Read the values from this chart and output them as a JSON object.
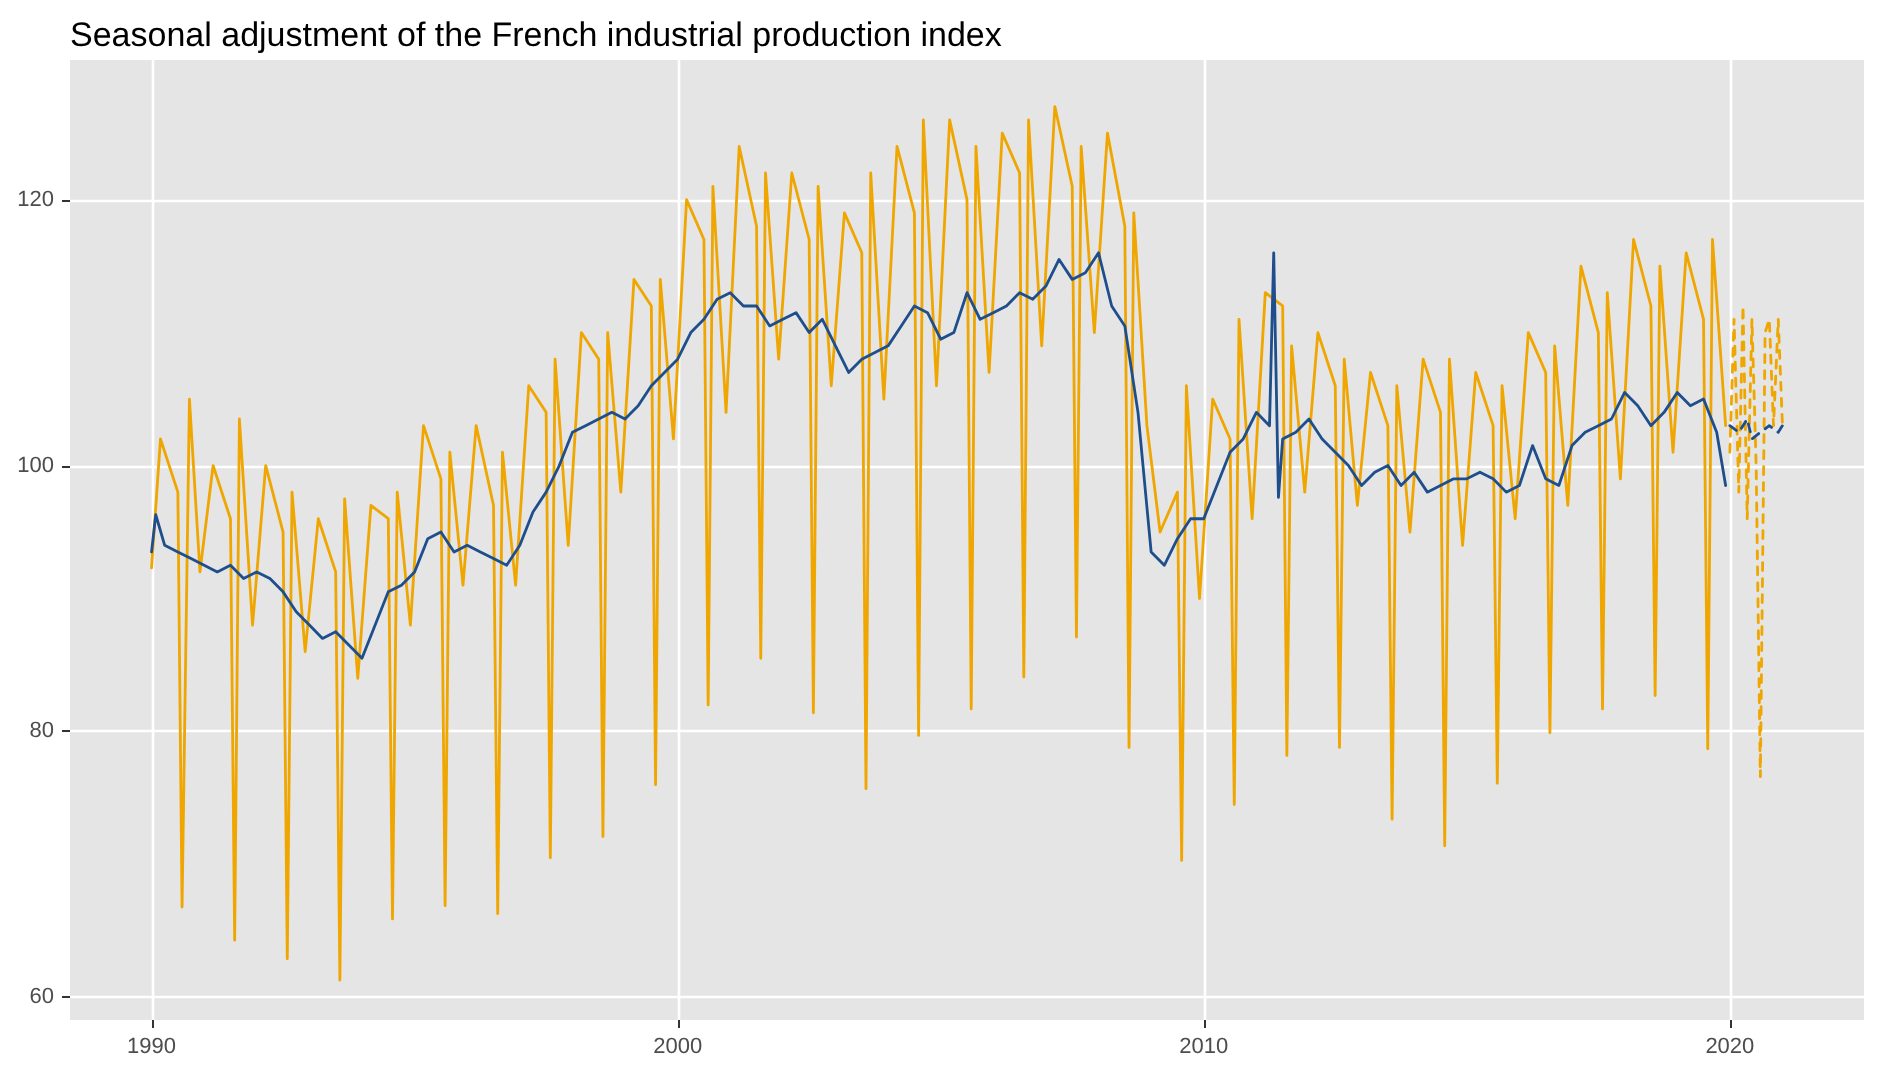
{
  "chart_data": {
    "type": "line",
    "title": "Seasonal adjustment of the French industrial production index",
    "xlim": [
      1988.45,
      2022.55
    ],
    "xticks": [
      1990,
      2000,
      2010,
      2020
    ],
    "ylim": [
      58.3,
      130.5
    ],
    "yticks": [
      60,
      80,
      100,
      120
    ],
    "grid": true,
    "marker": "none",
    "series": [
      {
        "color": "#efa600",
        "line_style": "solid",
        "x": [
          1990,
          1990.17,
          1990.5,
          1990.58,
          1990.72,
          1990.92,
          1991.17,
          1991.5,
          1991.58,
          1991.67,
          1991.92,
          1992.17,
          1992.5,
          1992.58,
          1992.67,
          1992.92,
          1993.17,
          1993.5,
          1993.58,
          1993.67,
          1993.92,
          1994.17,
          1994.5,
          1994.58,
          1994.67,
          1994.92,
          1995.17,
          1995.5,
          1995.58,
          1995.67,
          1995.92,
          1996.17,
          1996.5,
          1996.58,
          1996.67,
          1996.92,
          1997.17,
          1997.5,
          1997.58,
          1997.67,
          1997.92,
          1998.17,
          1998.5,
          1998.58,
          1998.67,
          1998.92,
          1999.17,
          1999.5,
          1999.58,
          1999.67,
          1999.92,
          2000.17,
          2000.5,
          2000.58,
          2000.67,
          2000.92,
          2001.17,
          2001.5,
          2001.58,
          2001.67,
          2001.92,
          2002.17,
          2002.5,
          2002.58,
          2002.67,
          2002.92,
          2003.17,
          2003.5,
          2003.58,
          2003.67,
          2003.92,
          2004.17,
          2004.5,
          2004.58,
          2004.67,
          2004.92,
          2005.17,
          2005.5,
          2005.58,
          2005.67,
          2005.92,
          2006.17,
          2006.5,
          2006.58,
          2006.67,
          2006.92,
          2007.17,
          2007.5,
          2007.58,
          2007.67,
          2007.92,
          2008.17,
          2008.5,
          2008.58,
          2008.67,
          2008.92,
          2009.17,
          2009.5,
          2009.58,
          2009.67,
          2009.92,
          2010.17,
          2010.5,
          2010.58,
          2010.67,
          2010.92,
          2011.17,
          2011.5,
          2011.58,
          2011.67,
          2011.92,
          2012.17,
          2012.5,
          2012.58,
          2012.67,
          2012.92,
          2013.17,
          2013.5,
          2013.58,
          2013.67,
          2013.92,
          2014.17,
          2014.5,
          2014.58,
          2014.67,
          2014.92,
          2015.17,
          2015.5,
          2015.58,
          2015.67,
          2015.92,
          2016.17,
          2016.5,
          2016.58,
          2016.67,
          2016.92,
          2017.17,
          2017.5,
          2017.58,
          2017.67,
          2017.92,
          2018.17,
          2018.5,
          2018.58,
          2018.67,
          2018.92,
          2019.17,
          2019.5,
          2019.58,
          2019.67,
          2019.92
        ],
        "values": [
          92.3,
          102,
          98,
          66.8,
          105,
          92,
          100,
          96,
          64.3,
          103.5,
          88,
          100,
          95,
          62.9,
          98,
          86,
          96,
          92,
          61.3,
          97.5,
          84,
          97,
          96,
          65.9,
          98,
          88,
          103,
          99,
          66.9,
          101,
          91,
          103,
          97,
          66.3,
          101,
          91,
          106,
          104,
          70.5,
          108,
          94,
          110,
          108,
          72.1,
          110,
          98,
          114,
          112,
          76,
          114,
          102,
          120,
          117,
          82,
          121,
          104,
          124,
          118,
          85.5,
          122,
          108,
          122,
          117,
          81.4,
          121,
          106,
          119,
          116,
          75.7,
          122,
          105,
          124,
          119,
          79.7,
          126,
          106,
          126,
          120,
          81.7,
          124,
          107,
          125,
          122,
          84.1,
          126,
          109,
          127,
          121,
          87.1,
          124,
          110,
          125,
          118,
          78.8,
          119,
          103,
          95,
          98,
          70.3,
          106,
          90,
          105,
          102,
          74.5,
          111,
          96,
          113,
          112,
          78.2,
          109,
          98,
          110,
          106,
          78.8,
          108,
          97,
          107,
          103,
          73.4,
          106,
          95,
          108,
          104,
          71.4,
          108,
          94,
          107,
          103,
          76.1,
          106,
          96,
          110,
          107,
          79.9,
          109,
          97,
          115,
          110,
          81.7,
          113,
          99,
          117,
          112,
          82.7,
          115,
          101,
          116,
          111,
          78.7,
          117,
          103
        ]
      },
      {
        "color": "#1f4e8c",
        "line_style": "solid",
        "x": [
          1990,
          1990.08,
          1990.25,
          1990.5,
          1990.75,
          1991,
          1991.25,
          1991.5,
          1991.75,
          1992,
          1992.25,
          1992.5,
          1992.75,
          1993,
          1993.25,
          1993.5,
          1993.75,
          1994,
          1994.25,
          1994.5,
          1994.75,
          1995,
          1995.25,
          1995.5,
          1995.75,
          1996,
          1996.25,
          1996.5,
          1996.75,
          1997,
          1997.25,
          1997.5,
          1997.75,
          1998,
          1998.25,
          1998.5,
          1998.75,
          1999,
          1999.25,
          1999.5,
          1999.75,
          2000,
          2000.25,
          2000.5,
          2000.75,
          2001,
          2001.25,
          2001.5,
          2001.75,
          2002,
          2002.25,
          2002.5,
          2002.75,
          2003,
          2003.25,
          2003.5,
          2003.75,
          2004,
          2004.25,
          2004.5,
          2004.75,
          2005,
          2005.25,
          2005.5,
          2005.75,
          2006,
          2006.25,
          2006.5,
          2006.75,
          2007,
          2007.25,
          2007.5,
          2007.75,
          2008,
          2008.25,
          2008.5,
          2008.75,
          2009,
          2009.25,
          2009.5,
          2009.75,
          2010,
          2010.25,
          2010.5,
          2010.75,
          2011,
          2011.25,
          2011.33,
          2011.42,
          2011.5,
          2011.75,
          2012,
          2012.25,
          2012.5,
          2012.75,
          2013,
          2013.25,
          2013.5,
          2013.75,
          2014,
          2014.25,
          2014.5,
          2014.75,
          2015,
          2015.25,
          2015.5,
          2015.75,
          2016,
          2016.25,
          2016.5,
          2016.75,
          2017,
          2017.25,
          2017.5,
          2017.75,
          2018,
          2018.25,
          2018.5,
          2018.75,
          2019,
          2019.25,
          2019.5,
          2019.75,
          2019.92
        ],
        "values": [
          93.5,
          96.3,
          94,
          93.5,
          93,
          92.5,
          92,
          92.5,
          91.5,
          92,
          91.5,
          90.5,
          89,
          88,
          87,
          87.5,
          86.5,
          85.5,
          88,
          90.5,
          91,
          92,
          94.5,
          95,
          93.5,
          94,
          93.5,
          93,
          92.5,
          94,
          96.5,
          98,
          100,
          102.5,
          103,
          103.5,
          104,
          103.5,
          104.5,
          106,
          107,
          108,
          110,
          111,
          112.5,
          113,
          112,
          112,
          110.5,
          111,
          111.5,
          110,
          111,
          109,
          107,
          108,
          108.5,
          109,
          110.5,
          112,
          111.5,
          109.5,
          110,
          113,
          111,
          111.5,
          112,
          113,
          112.5,
          113.5,
          115.5,
          114,
          114.5,
          116,
          112,
          110.5,
          104,
          93.5,
          92.5,
          94.5,
          96,
          96,
          98.5,
          101,
          102,
          104,
          103,
          116,
          97.6,
          102,
          102.5,
          103.5,
          102,
          101,
          100,
          98.5,
          99.5,
          100,
          98.5,
          99.5,
          98,
          98.5,
          99,
          99,
          99.5,
          99,
          98,
          98.5,
          101.5,
          99,
          98.5,
          101.5,
          102.5,
          103,
          103.5,
          105.5,
          104.5,
          103,
          104,
          105.5,
          104.5,
          105,
          102.5,
          98.5
        ]
      },
      {
        "color": "#efa600",
        "line_style": "dashed",
        "x": [
          2020,
          2020.08,
          2020.17,
          2020.25,
          2020.33,
          2020.42,
          2020.5,
          2020.58,
          2020.67,
          2020.75,
          2020.83,
          2020.92,
          2021
        ],
        "values": [
          101,
          111,
          98,
          112,
          96,
          111,
          100,
          76.6,
          110,
          111,
          103,
          111,
          103
        ]
      },
      {
        "color": "#1f4e8c",
        "line_style": "dashed",
        "x": [
          2020,
          2020.17,
          2020.33,
          2020.42,
          2020.58,
          2020.75,
          2020.92,
          2021
        ],
        "values": [
          103,
          102.5,
          103.5,
          102,
          102.5,
          103,
          102.5,
          103
        ]
      }
    ]
  }
}
